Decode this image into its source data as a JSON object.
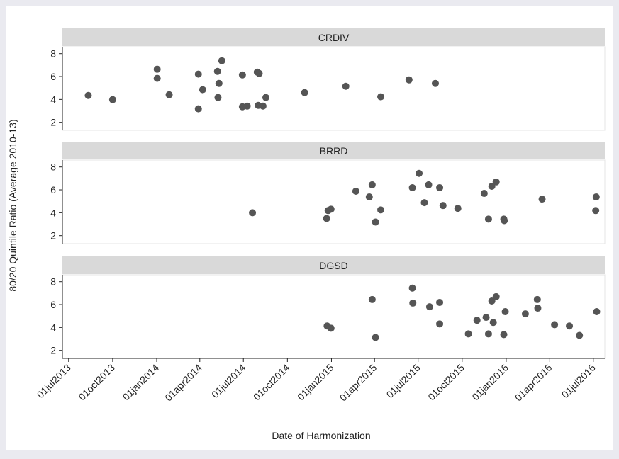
{
  "chart_data": {
    "type": "scatter",
    "xlabel": "Date of Harmonization",
    "ylabel": "80/20 Quintile Ratio (Average 2010-13)",
    "color": "#555555",
    "xlim": [
      "2013-06-18",
      "2016-07-25"
    ],
    "xticks": [
      {
        "value": "2013-07-01",
        "label": "01jul2013"
      },
      {
        "value": "2013-10-01",
        "label": "01oct2013"
      },
      {
        "value": "2014-01-01",
        "label": "01jan2014"
      },
      {
        "value": "2014-04-01",
        "label": "01apr2014"
      },
      {
        "value": "2014-07-01",
        "label": "01jul2014"
      },
      {
        "value": "2014-10-01",
        "label": "01oct2014"
      },
      {
        "value": "2015-01-01",
        "label": "01jan2015"
      },
      {
        "value": "2015-04-01",
        "label": "01apr2015"
      },
      {
        "value": "2015-07-01",
        "label": "01jul2015"
      },
      {
        "value": "2015-10-01",
        "label": "01oct2015"
      },
      {
        "value": "2016-01-01",
        "label": "01jan2016"
      },
      {
        "value": "2016-04-01",
        "label": "01apr2016"
      },
      {
        "value": "2016-07-01",
        "label": "01jul2016"
      }
    ],
    "ylim": [
      1.3,
      8.6
    ],
    "yticks": [
      2,
      4,
      6,
      8
    ],
    "panels": [
      {
        "title": "CRDIV",
        "x": [
          "2013-08-11",
          "2013-10-01",
          "2014-01-02",
          "2014-01-02",
          "2014-01-27",
          "2014-03-29",
          "2014-04-07",
          "2014-03-29",
          "2014-05-08",
          "2014-05-11",
          "2014-05-17",
          "2014-05-09",
          "2014-06-29",
          "2014-06-29",
          "2014-07-09",
          "2014-07-30",
          "2014-08-03",
          "2014-08-01",
          "2014-08-11",
          "2014-08-17",
          "2014-11-06",
          "2015-01-31",
          "2015-04-14",
          "2015-06-12",
          "2015-08-06"
        ],
        "y": [
          4.35,
          3.98,
          6.64,
          5.84,
          4.41,
          6.21,
          4.85,
          3.18,
          6.45,
          5.4,
          7.38,
          4.17,
          6.14,
          3.36,
          3.42,
          6.39,
          6.27,
          3.48,
          3.42,
          4.17,
          4.6,
          5.15,
          4.23,
          5.71,
          5.4
        ]
      },
      {
        "title": "BRRD",
        "x": [
          "2014-07-20",
          "2014-12-22",
          "2014-12-25",
          "2014-12-31",
          "2015-02-21",
          "2015-03-21",
          "2015-03-27",
          "2015-04-03",
          "2015-04-14",
          "2015-06-19",
          "2015-07-03",
          "2015-07-14",
          "2015-07-23",
          "2015-08-15",
          "2015-08-22",
          "2015-09-22",
          "2015-11-16",
          "2015-11-25",
          "2015-12-02",
          "2015-12-11",
          "2015-12-27",
          "2015-12-28",
          "2016-03-16",
          "2016-07-07",
          "2016-07-06"
        ],
        "y": [
          4.0,
          3.5,
          4.19,
          4.31,
          5.88,
          5.38,
          6.44,
          3.19,
          4.25,
          6.19,
          7.44,
          4.88,
          6.44,
          6.19,
          4.63,
          4.38,
          5.69,
          3.44,
          6.31,
          6.69,
          3.44,
          3.31,
          5.19,
          5.38,
          4.19
        ]
      },
      {
        "title": "DGSD",
        "x": [
          "2014-12-23",
          "2014-12-31",
          "2015-03-27",
          "2015-04-03",
          "2015-06-19",
          "2015-06-20",
          "2015-07-25",
          "2015-08-15",
          "2015-08-15",
          "2015-10-14",
          "2015-11-01",
          "2015-11-20",
          "2015-11-25",
          "2015-12-02",
          "2015-12-05",
          "2015-12-11",
          "2015-12-30",
          "2015-12-27",
          "2016-02-10",
          "2016-03-06",
          "2016-03-07",
          "2016-04-11",
          "2016-05-12",
          "2016-06-02",
          "2016-07-08"
        ],
        "y": [
          4.13,
          3.94,
          6.44,
          3.13,
          7.44,
          6.13,
          5.81,
          6.19,
          4.31,
          3.44,
          4.63,
          4.88,
          3.44,
          6.31,
          4.44,
          6.69,
          5.38,
          3.38,
          5.19,
          6.44,
          5.69,
          4.25,
          4.13,
          3.31,
          5.38
        ]
      }
    ]
  }
}
